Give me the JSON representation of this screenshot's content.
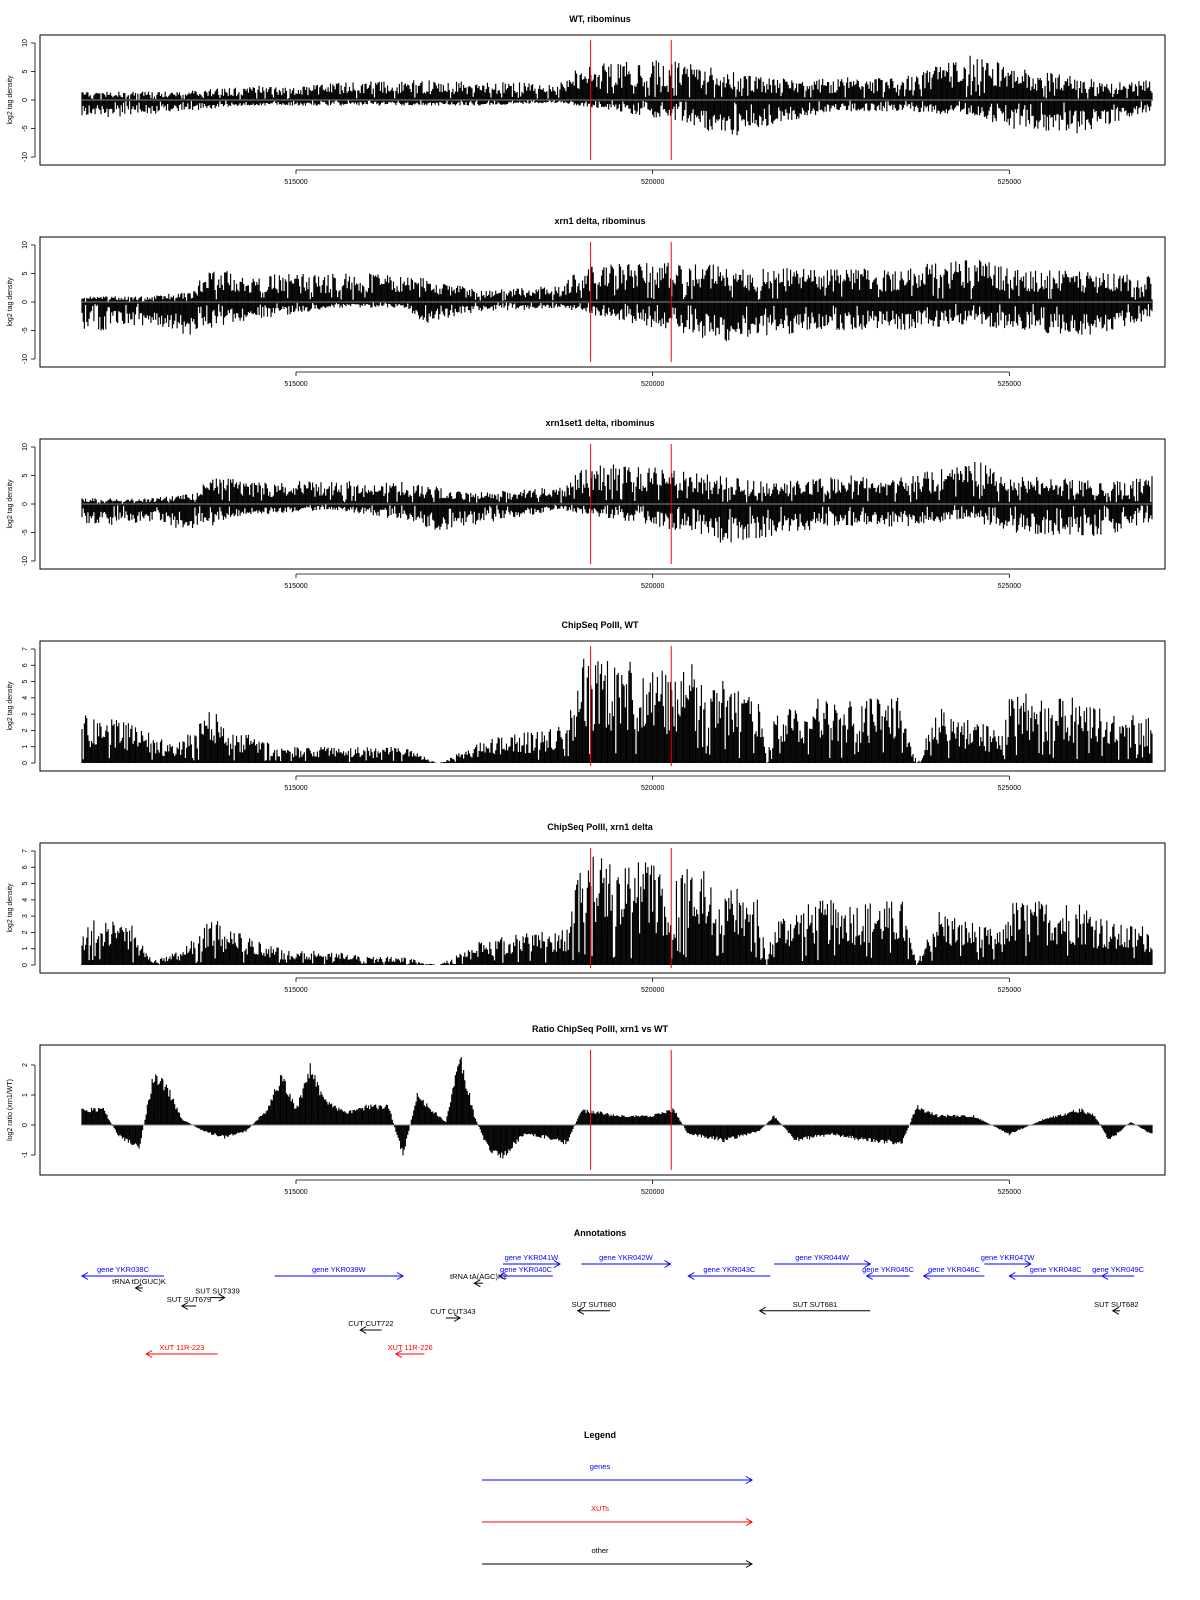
{
  "chart_data": [
    {
      "type": "area",
      "title": "WT, ribominus",
      "ylabel": "log2 tag density",
      "ylim": [
        -10,
        10
      ],
      "yticks": [
        10,
        5,
        0,
        -5,
        -10
      ],
      "xlim": [
        512000,
        527000
      ],
      "xticks": [
        515000,
        520000,
        525000
      ],
      "markers": [
        519130,
        520260
      ],
      "plus": [
        [
          513400,
          1.5
        ],
        [
          513800,
          2
        ],
        [
          514500,
          2.5
        ],
        [
          515500,
          3
        ],
        [
          516500,
          3.5
        ],
        [
          518700,
          3
        ],
        [
          519000,
          6
        ],
        [
          519700,
          7
        ],
        [
          520300,
          7
        ],
        [
          521500,
          4
        ],
        [
          522500,
          4
        ],
        [
          523500,
          4
        ],
        [
          524000,
          6
        ],
        [
          524500,
          8
        ],
        [
          525000,
          6
        ],
        [
          526500,
          3
        ],
        [
          527000,
          4
        ]
      ],
      "minus": [
        [
          512000,
          -3
        ],
        [
          512500,
          -3
        ],
        [
          513400,
          -2
        ],
        [
          514300,
          -1
        ],
        [
          516800,
          -1
        ],
        [
          517600,
          -1
        ],
        [
          518700,
          -0.5
        ],
        [
          520500,
          -4
        ],
        [
          521000,
          -7
        ],
        [
          521500,
          -5
        ],
        [
          522500,
          -2
        ],
        [
          523500,
          -2
        ],
        [
          524500,
          -3
        ],
        [
          525000,
          -5
        ],
        [
          526000,
          -6
        ],
        [
          526500,
          -4
        ],
        [
          527000,
          -2
        ]
      ]
    },
    {
      "type": "area",
      "title": "xrn1 delta, ribominus",
      "ylabel": "log2 tag density",
      "ylim": [
        -10,
        10
      ],
      "yticks": [
        10,
        5,
        0,
        -5,
        -10
      ],
      "xlim": [
        512000,
        527000
      ],
      "xticks": [
        515000,
        520000,
        525000
      ],
      "markers": [
        519130,
        520260
      ],
      "plus": [
        [
          512900,
          1
        ],
        [
          513600,
          2
        ],
        [
          513700,
          6
        ],
        [
          514300,
          5
        ],
        [
          515500,
          5
        ],
        [
          516500,
          5
        ],
        [
          517600,
          2
        ],
        [
          518700,
          3
        ],
        [
          519000,
          6
        ],
        [
          519700,
          7
        ],
        [
          520400,
          7
        ],
        [
          521500,
          6
        ],
        [
          522500,
          6
        ],
        [
          523500,
          6
        ],
        [
          524000,
          7
        ],
        [
          524500,
          8
        ],
        [
          525000,
          6
        ],
        [
          526500,
          5
        ],
        [
          527000,
          5
        ]
      ],
      "minus": [
        [
          512000,
          -5
        ],
        [
          512500,
          -5
        ],
        [
          513000,
          -4
        ],
        [
          513500,
          -6
        ],
        [
          514000,
          -4
        ],
        [
          515500,
          -1
        ],
        [
          516500,
          -1
        ],
        [
          516800,
          -4
        ],
        [
          517400,
          -2
        ],
        [
          518700,
          -1
        ],
        [
          520500,
          -6
        ],
        [
          521000,
          -7
        ],
        [
          521500,
          -6
        ],
        [
          522500,
          -5
        ],
        [
          523500,
          -5
        ],
        [
          524500,
          -4
        ],
        [
          525000,
          -5
        ],
        [
          526000,
          -6
        ],
        [
          526500,
          -5
        ],
        [
          527000,
          -3
        ]
      ]
    },
    {
      "type": "area",
      "title": "xrn1set1 delta, ribominus",
      "ylabel": "log2 tag density",
      "ylim": [
        -10,
        10
      ],
      "yticks": [
        10,
        5,
        0,
        -5,
        -10
      ],
      "xlim": [
        512000,
        527000
      ],
      "xticks": [
        515000,
        520000,
        525000
      ],
      "markers": [
        519130,
        520260
      ],
      "plus": [
        [
          512900,
          1
        ],
        [
          513600,
          2
        ],
        [
          513800,
          5
        ],
        [
          514500,
          4
        ],
        [
          515500,
          4
        ],
        [
          516500,
          4
        ],
        [
          517500,
          2
        ],
        [
          518700,
          3
        ],
        [
          519100,
          7
        ],
        [
          519700,
          7
        ],
        [
          520400,
          6
        ],
        [
          521500,
          4
        ],
        [
          522500,
          5
        ],
        [
          523500,
          5
        ],
        [
          524000,
          6
        ],
        [
          524500,
          8
        ],
        [
          525000,
          5
        ],
        [
          526500,
          4
        ],
        [
          527000,
          5
        ]
      ],
      "minus": [
        [
          512000,
          -4
        ],
        [
          512500,
          -4
        ],
        [
          513000,
          -3
        ],
        [
          513500,
          -5
        ],
        [
          514300,
          -2
        ],
        [
          515500,
          -1
        ],
        [
          516600,
          -3
        ],
        [
          517000,
          -5
        ],
        [
          518700,
          -1
        ],
        [
          520500,
          -5
        ],
        [
          521000,
          -7
        ],
        [
          521500,
          -6
        ],
        [
          522500,
          -4
        ],
        [
          523500,
          -4
        ],
        [
          524500,
          -3
        ],
        [
          525000,
          -5
        ],
        [
          526000,
          -6
        ],
        [
          526500,
          -5
        ],
        [
          527000,
          -3
        ]
      ]
    },
    {
      "type": "area",
      "title": "ChipSeq PolII, WT",
      "ylabel": "log2 tag density",
      "ylim": [
        0,
        7
      ],
      "yticks": [
        7,
        6,
        5,
        4,
        3,
        2,
        1,
        0
      ],
      "xlim": [
        512000,
        527000
      ],
      "xticks": [
        515000,
        520000,
        525000
      ],
      "markers": [
        519130,
        520260
      ],
      "plus": [
        [
          512000,
          3
        ],
        [
          512700,
          2.5
        ],
        [
          513300,
          1
        ],
        [
          513800,
          3.5
        ],
        [
          514200,
          2
        ],
        [
          514800,
          1
        ],
        [
          516500,
          1
        ],
        [
          517000,
          0
        ],
        [
          517700,
          1.5
        ],
        [
          518800,
          2.5
        ],
        [
          519000,
          6.5
        ],
        [
          519500,
          6.5
        ],
        [
          520000,
          6.3
        ],
        [
          520300,
          5
        ],
        [
          520500,
          6.5
        ],
        [
          521500,
          4
        ],
        [
          521600,
          0
        ],
        [
          521700,
          3
        ],
        [
          522300,
          4
        ],
        [
          523500,
          4
        ],
        [
          523700,
          0
        ],
        [
          524000,
          3.5
        ],
        [
          524900,
          2
        ],
        [
          525000,
          4.5
        ],
        [
          526000,
          4
        ],
        [
          526500,
          3
        ],
        [
          527000,
          3
        ]
      ],
      "minus": []
    },
    {
      "type": "area",
      "title": "ChipSeq PolII, xrn1 delta",
      "ylabel": "log2 tag density",
      "ylim": [
        0,
        7
      ],
      "yticks": [
        7,
        6,
        5,
        4,
        3,
        2,
        1,
        0
      ],
      "xlim": [
        512000,
        527000
      ],
      "xticks": [
        515000,
        520000,
        525000
      ],
      "markers": [
        519130,
        520260
      ],
      "plus": [
        [
          512000,
          3
        ],
        [
          512700,
          2.5
        ],
        [
          513000,
          0.3
        ],
        [
          513400,
          1
        ],
        [
          513800,
          3
        ],
        [
          514200,
          2
        ],
        [
          514800,
          1
        ],
        [
          516500,
          0.5
        ],
        [
          517000,
          0
        ],
        [
          517600,
          1.5
        ],
        [
          518800,
          2.5
        ],
        [
          519000,
          6.8
        ],
        [
          519500,
          6.7
        ],
        [
          520000,
          6.3
        ],
        [
          520300,
          5
        ],
        [
          520500,
          6.5
        ],
        [
          521500,
          4
        ],
        [
          521600,
          0
        ],
        [
          521700,
          3
        ],
        [
          522300,
          4
        ],
        [
          523500,
          4
        ],
        [
          523700,
          0
        ],
        [
          524000,
          3.5
        ],
        [
          524900,
          2
        ],
        [
          525000,
          4
        ],
        [
          526000,
          4
        ],
        [
          526500,
          2.5
        ],
        [
          527000,
          2.5
        ]
      ],
      "minus": []
    },
    {
      "type": "area",
      "title": "Ratio ChipSeq PolII, xrn1 vs WT",
      "ylabel": "log2 ratio (xrn1/WT)",
      "ylim": [
        -1.4,
        2.4
      ],
      "yticks": [
        2.0,
        1.0,
        0.0,
        -1.0
      ],
      "xlim": [
        512000,
        527000
      ],
      "xticks": [
        515000,
        520000,
        525000
      ],
      "markers": [
        519130,
        520260
      ],
      "ratio": [
        [
          512000,
          0.5
        ],
        [
          512300,
          0.5
        ],
        [
          512500,
          -0.3
        ],
        [
          512800,
          -0.8
        ],
        [
          513000,
          1.6
        ],
        [
          513200,
          1.2
        ],
        [
          513400,
          0.2
        ],
        [
          513700,
          -0.2
        ],
        [
          514000,
          -0.4
        ],
        [
          514300,
          -0.2
        ],
        [
          514600,
          0.5
        ],
        [
          514800,
          1.6
        ],
        [
          515000,
          0.5
        ],
        [
          515200,
          1.8
        ],
        [
          515400,
          0.8
        ],
        [
          515700,
          0.4
        ],
        [
          516000,
          0.6
        ],
        [
          516300,
          0.6
        ],
        [
          516500,
          -1.0
        ],
        [
          516700,
          1.0
        ],
        [
          516900,
          0.5
        ],
        [
          517100,
          0.1
        ],
        [
          517300,
          2.2
        ],
        [
          517500,
          0.3
        ],
        [
          517700,
          -0.8
        ],
        [
          517900,
          -1.0
        ],
        [
          518200,
          -0.3
        ],
        [
          518500,
          -0.4
        ],
        [
          518800,
          -0.6
        ],
        [
          519000,
          0.5
        ],
        [
          519500,
          0.3
        ],
        [
          520000,
          0.3
        ],
        [
          520300,
          0.5
        ],
        [
          520500,
          -0.3
        ],
        [
          521000,
          -0.5
        ],
        [
          521500,
          -0.2
        ],
        [
          521700,
          0.3
        ],
        [
          522000,
          -0.5
        ],
        [
          522500,
          -0.3
        ],
        [
          523000,
          -0.5
        ],
        [
          523500,
          -0.6
        ],
        [
          523700,
          0.6
        ],
        [
          524000,
          0.3
        ],
        [
          524500,
          0.3
        ],
        [
          525000,
          -0.3
        ],
        [
          525500,
          0.2
        ],
        [
          526000,
          0.5
        ],
        [
          526200,
          0.3
        ],
        [
          526400,
          -0.5
        ],
        [
          526700,
          0.1
        ],
        [
          527000,
          -0.3
        ]
      ]
    }
  ],
  "annotations": {
    "title": "Annotations",
    "items": [
      {
        "label": "gene YKR038C",
        "color": "#0000ff",
        "start": 512000,
        "end": 513150,
        "dir": "left",
        "lane": 0
      },
      {
        "label": "gene YKR039W",
        "color": "#0000ff",
        "start": 514700,
        "end": 516500,
        "dir": "right",
        "lane": 0
      },
      {
        "label": "gene YKR041W",
        "color": "#0000ff",
        "start": 517900,
        "end": 518700,
        "dir": "right",
        "lane": -1
      },
      {
        "label": "gene YKR040C",
        "color": "#0000ff",
        "start": 517850,
        "end": 518600,
        "dir": "left",
        "lane": 0
      },
      {
        "label": "gene YKR042W",
        "color": "#0000ff",
        "start": 519000,
        "end": 520250,
        "dir": "right",
        "lane": -1
      },
      {
        "label": "gene YKR043C",
        "color": "#0000ff",
        "start": 520500,
        "end": 521650,
        "dir": "left",
        "lane": 0
      },
      {
        "label": "gene YKR044W",
        "color": "#0000ff",
        "start": 521700,
        "end": 523050,
        "dir": "right",
        "lane": -1
      },
      {
        "label": "gene YKR045C",
        "color": "#0000ff",
        "start": 523000,
        "end": 523600,
        "dir": "left",
        "lane": 0
      },
      {
        "label": "gene YKR046C",
        "color": "#0000ff",
        "start": 523800,
        "end": 524650,
        "dir": "left",
        "lane": 0
      },
      {
        "label": "gene YKR047W",
        "color": "#0000ff",
        "start": 524650,
        "end": 525300,
        "dir": "right",
        "lane": -1
      },
      {
        "label": "gene YKR048C",
        "color": "#0000ff",
        "start": 525000,
        "end": 526300,
        "dir": "left",
        "lane": 0
      },
      {
        "label": "gene YKR049C",
        "color": "#0000ff",
        "start": 526300,
        "end": 526750,
        "dir": "left",
        "lane": 0
      },
      {
        "label": "tRNA tD(GUC)K",
        "color": "#000000",
        "start": 512750,
        "end": 512850,
        "dir": "left",
        "lane": 1
      },
      {
        "label": "tRNA tA(AGC)K2",
        "color": "#000000",
        "start": 517500,
        "end": 517620,
        "dir": "left",
        "lane": 0.6
      },
      {
        "label": "SUT SUT339",
        "color": "#000000",
        "start": 513800,
        "end": 514000,
        "dir": "right",
        "lane": 1.8
      },
      {
        "label": "SUT SUT679",
        "color": "#000000",
        "start": 513400,
        "end": 513600,
        "dir": "left",
        "lane": 2.5
      },
      {
        "label": "CUT CUT343",
        "color": "#000000",
        "start": 517100,
        "end": 517300,
        "dir": "right",
        "lane": 3.5
      },
      {
        "label": "CUT CUT722",
        "color": "#000000",
        "start": 515900,
        "end": 516200,
        "dir": "left",
        "lane": 4.5
      },
      {
        "label": "SUT SUT680",
        "color": "#000000",
        "start": 518950,
        "end": 519400,
        "dir": "left",
        "lane": 2.9
      },
      {
        "label": "SUT SUT681",
        "color": "#000000",
        "start": 521500,
        "end": 523050,
        "dir": "left",
        "lane": 2.9
      },
      {
        "label": "SUT SUT682",
        "color": "#000000",
        "start": 526450,
        "end": 526550,
        "dir": "left",
        "lane": 2.9
      },
      {
        "label": "XUT 11R-223",
        "color": "#ff0000",
        "start": 512900,
        "end": 513900,
        "dir": "left",
        "lane": 6.5
      },
      {
        "label": "XUT 11R-226",
        "color": "#ff0000",
        "start": 516400,
        "end": 516800,
        "dir": "left",
        "lane": 6.5
      }
    ]
  },
  "legend": {
    "title": "Legend",
    "items": [
      {
        "label": "genes",
        "color": "#0000ff"
      },
      {
        "label": "XUTs",
        "color": "#ff0000"
      },
      {
        "label": "other",
        "color": "#000000"
      }
    ]
  }
}
